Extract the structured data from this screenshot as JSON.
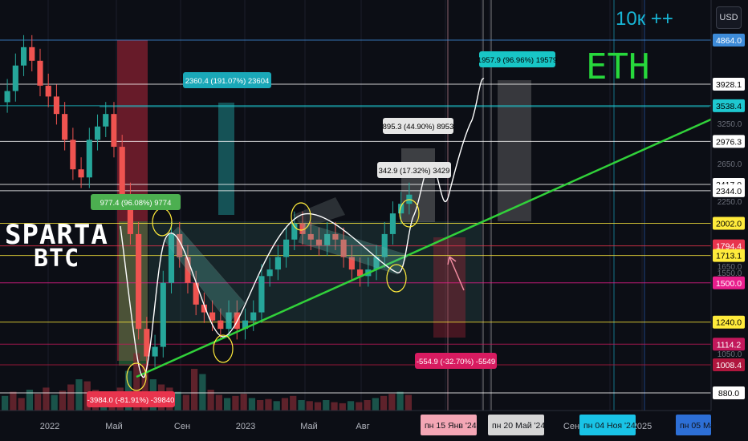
{
  "ui": {
    "currency_button": "USD",
    "logo_line1": "SPARTA",
    "logo_line2": "BTC",
    "eth_label": "ETH",
    "top_note": "10к ++"
  },
  "chart_data": {
    "type": "candlestick",
    "symbol_context": "ETH/USD",
    "y_axis": {
      "scale": "log",
      "range": [
        860,
        4950
      ]
    },
    "x_axis_labels": [
      "2022",
      "Май",
      "Сен",
      "2023",
      "Май",
      "Авг",
      "Сен",
      "2025"
    ],
    "date_badges": [
      {
        "label": "пн 15 Янв '24",
        "color": "#f4a6b5"
      },
      {
        "label": "пн 20 Май '24",
        "color": "#d6d6d6"
      },
      {
        "label": "пн 04 Ноя '24",
        "color": "#19c3e6"
      },
      {
        "label": "пн 05 Ма",
        "color": "#2d6fd6"
      }
    ],
    "price_levels": [
      {
        "value": "4864.0",
        "price": 4864,
        "color": "#3d8bd9",
        "text_color": "#ffffff"
      },
      {
        "value": "3928.1",
        "price": 3928.1,
        "color": "#ffffff",
        "text_color": "#000000"
      },
      {
        "value": "3538.4",
        "price": 3538.4,
        "color": "#1ec8d0",
        "text_color": "#000000"
      },
      {
        "value": "2976.3",
        "price": 2976.3,
        "color": "#ffffff",
        "text_color": "#000000"
      },
      {
        "value": "2417.0",
        "price": 2417,
        "color": "#ffffff",
        "text_color": "#000000"
      },
      {
        "value": "2344.0",
        "price": 2344,
        "color": "#ffffff",
        "text_color": "#000000"
      },
      {
        "value": "2002.0",
        "price": 2002,
        "color": "#ffeb3b",
        "text_color": "#000000"
      },
      {
        "value": "1794.4",
        "price": 1794.4,
        "color": "#e8344d",
        "text_color": "#ffffff"
      },
      {
        "value": "1713.1",
        "price": 1713.1,
        "color": "#ffeb3b",
        "text_color": "#000000"
      },
      {
        "value": "1500.0",
        "price": 1500,
        "color": "#e91e8c",
        "text_color": "#ffffff"
      },
      {
        "value": "1240.0",
        "price": 1240,
        "color": "#ffeb3b",
        "text_color": "#000000"
      },
      {
        "value": "1114.2",
        "price": 1114.2,
        "color": "#c2185b",
        "text_color": "#ffffff"
      },
      {
        "value": "1008.4",
        "price": 1008.4,
        "color": "#b0173e",
        "text_color": "#ffffff"
      },
      {
        "value": "880.0",
        "price": 880,
        "color": "#ffffff",
        "text_color": "#000000"
      }
    ],
    "axis_faint_ticks": [
      "3250.0",
      "2650.0",
      "2250.0",
      "1650.0",
      "1550.0",
      "1050.0"
    ],
    "measurements": [
      {
        "text": "977.4 (96.08%) 9774",
        "color": "#4caf50",
        "text_color": "#ffffff"
      },
      {
        "text": "2360.4 (191.07%) 23604",
        "color": "#1aa8b8",
        "text_color": "#ffffff"
      },
      {
        "text": "1957.9 (96.96%) 19579",
        "color": "#18c6c6",
        "text_color": "#000000"
      },
      {
        "text": "895.3 (44.90%) 8953",
        "color": "#e6e6e6",
        "text_color": "#000000"
      },
      {
        "text": "342.9 (17.32%) 3429",
        "color": "#e6e6e6",
        "text_color": "#000000"
      },
      {
        "text": "-554.9 (-32.70%) -5549",
        "color": "#d81b60",
        "text_color": "#ffffff"
      },
      {
        "text": "-3984.0 (-81.91%) -39840",
        "color": "#e8344d",
        "text_color": "#ffffff"
      }
    ],
    "series": [
      {
        "name": "",
        "type": "candles",
        "approx_closes": [
          3800,
          4300,
          4700,
          4400,
          3900,
          3700,
          3400,
          3000,
          2600,
          2500,
          3000,
          3200,
          3400,
          2900,
          2300,
          1900,
          1200,
          1050,
          1100,
          1500,
          1900,
          1700,
          1500,
          1350,
          1300,
          1250,
          1200,
          1300,
          1200,
          1250,
          1300,
          1550,
          1600,
          1700,
          1850,
          2000,
          1900,
          1850,
          1800,
          1900,
          1850,
          1700,
          1600,
          1550,
          1600,
          1700,
          1900,
          2100,
          2200,
          2300
        ]
      }
    ],
    "volume": {
      "approx_values": [
        14,
        18,
        12,
        20,
        16,
        22,
        15,
        19,
        25,
        30,
        28,
        20,
        18,
        15,
        22,
        38,
        55,
        45,
        30,
        25,
        22,
        18,
        15,
        40,
        35,
        20,
        15,
        12,
        14,
        16,
        12,
        10,
        11,
        9,
        12,
        14,
        10,
        9,
        8,
        10,
        8,
        7,
        9,
        8,
        10,
        12,
        14,
        16,
        18,
        15
      ]
    }
  },
  "colors": {
    "up": "#26a69a",
    "down": "#ef5350",
    "trendline": "#31d13a",
    "path": "#ffffff",
    "zone": "#5fb3a8",
    "circle": "#ffeb3b"
  }
}
